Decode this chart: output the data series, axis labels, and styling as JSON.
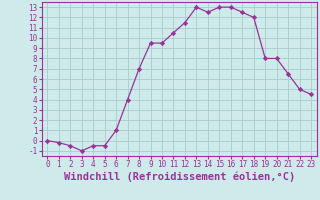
{
  "x": [
    0,
    1,
    2,
    3,
    4,
    5,
    6,
    7,
    8,
    9,
    10,
    11,
    12,
    13,
    14,
    15,
    16,
    17,
    18,
    19,
    20,
    21,
    22,
    23
  ],
  "y": [
    0.0,
    -0.2,
    -0.5,
    -1.0,
    -0.5,
    -0.5,
    1.0,
    4.0,
    7.0,
    9.5,
    9.5,
    10.5,
    11.5,
    13.0,
    12.5,
    13.0,
    13.0,
    12.5,
    12.0,
    8.0,
    8.0,
    6.5,
    5.0,
    4.5
  ],
  "line_color": "#993399",
  "marker": "D",
  "marker_size": 2.2,
  "bg_color": "#ceeaea",
  "grid_color": "#a8cccc",
  "xlabel": "Windchill (Refroidissement éolien,°C)",
  "xlabel_color": "#993399",
  "xlim": [
    -0.5,
    23.5
  ],
  "ylim": [
    -1.5,
    13.5
  ],
  "yticks": [
    -1,
    0,
    1,
    2,
    3,
    4,
    5,
    6,
    7,
    8,
    9,
    10,
    11,
    12,
    13
  ],
  "xticks": [
    0,
    1,
    2,
    3,
    4,
    5,
    6,
    7,
    8,
    9,
    10,
    11,
    12,
    13,
    14,
    15,
    16,
    17,
    18,
    19,
    20,
    21,
    22,
    23
  ],
  "tick_label_fontsize": 5.5,
  "xlabel_fontsize": 7.5
}
